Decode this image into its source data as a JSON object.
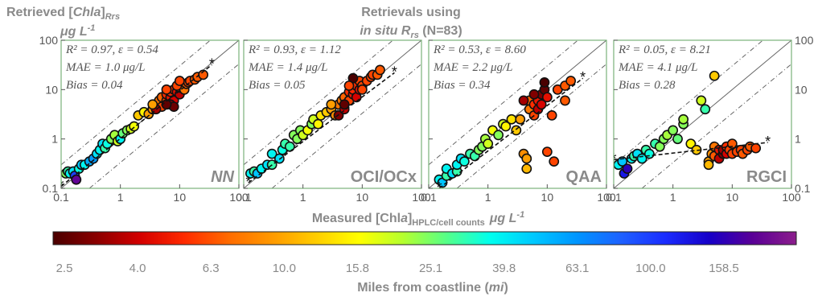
{
  "figure": {
    "title_line1": "Retrievals using",
    "title_line2": "in situ R",
    "title_line2_sub": "rs",
    "title_line2_tail": " (N=83)",
    "ylabel_line1": "Retrieved [",
    "ylabel_chl": "Chl",
    "ylabel_a": "a",
    "ylabel_close": "]",
    "ylabel_sub": "Rrs",
    "ylabel_line2": "μg L",
    "ylabel_line2_sup": "-1",
    "xlabel": "Measured [Chl",
    "xlabel_a": "a",
    "xlabel_close": "]",
    "xlabel_sub": "HPLC/cell counts",
    "xlabel_unit": "μg L",
    "xlabel_unit_sup": "-1",
    "colorbar_title": "Miles from coastline (",
    "colorbar_title_unit": "mi",
    "colorbar_title_close": ")",
    "colorbar_ticks": [
      "2.5",
      "4.0",
      "6.3",
      "10.0",
      "15.8",
      "25.1",
      "39.8",
      "63.1",
      "100.0",
      "158.5"
    ],
    "colorbar_colors": [
      "#4a0000",
      "#8b0000",
      "#d40000",
      "#ff2a00",
      "#ff6a00",
      "#ff9900",
      "#ffcc00",
      "#ffff00",
      "#b5ff2e",
      "#55ff88",
      "#00ffee",
      "#00c8ff",
      "#0094ff",
      "#1e60ff",
      "#1a2cff",
      "#1600c8",
      "#5a0096",
      "#8c1e8c"
    ]
  },
  "chart_data": [
    {
      "type": "scatter",
      "method": "NN",
      "xscale": "log",
      "yscale": "log",
      "xlim": [
        0.1,
        100
      ],
      "ylim": [
        0.1,
        100
      ],
      "xticks": [
        "0.1",
        "1",
        "10",
        "100"
      ],
      "yticks": [
        "0.1",
        "1",
        "10",
        "100"
      ],
      "stats": [
        "R² = 0.97, ε = 0.54",
        "MAE = 1.0 μg/L",
        "Bias = 0.04"
      ],
      "regression": [
        [
          0.1,
          0.11
        ],
        [
          35,
          32
        ]
      ],
      "points": [
        [
          0.12,
          0.2,
          0.5
        ],
        [
          0.13,
          0.22,
          0.55
        ],
        [
          0.14,
          0.2,
          0.6
        ],
        [
          0.16,
          0.22,
          0.62
        ],
        [
          0.17,
          0.18,
          0.8
        ],
        [
          0.18,
          0.15,
          0.95
        ],
        [
          0.2,
          0.25,
          0.58
        ],
        [
          0.22,
          0.3,
          0.65
        ],
        [
          0.25,
          0.3,
          0.6
        ],
        [
          0.3,
          0.35,
          0.68
        ],
        [
          0.35,
          0.4,
          0.7
        ],
        [
          0.4,
          0.5,
          0.62
        ],
        [
          0.45,
          0.6,
          0.6
        ],
        [
          0.5,
          0.8,
          0.62
        ],
        [
          0.55,
          0.65,
          0.55
        ],
        [
          0.6,
          0.8,
          0.58
        ],
        [
          0.7,
          1.0,
          0.5
        ],
        [
          0.8,
          1.2,
          0.48
        ],
        [
          0.9,
          0.9,
          0.45
        ],
        [
          1.0,
          1.0,
          0.6
        ],
        [
          1.1,
          1.3,
          0.52
        ],
        [
          1.3,
          1.5,
          0.5
        ],
        [
          1.5,
          1.6,
          0.45
        ],
        [
          1.7,
          1.8,
          0.42
        ],
        [
          2.0,
          3.0,
          0.35
        ],
        [
          2.5,
          3.5,
          0.4
        ],
        [
          3.0,
          3.2,
          0.3
        ],
        [
          3.5,
          4.0,
          0.28
        ],
        [
          4,
          5,
          0.25
        ],
        [
          4.5,
          6,
          0.25
        ],
        [
          5,
          4.5,
          0.2
        ],
        [
          5,
          7,
          0.23
        ],
        [
          6,
          6,
          0.2
        ],
        [
          6,
          8,
          0.18
        ],
        [
          7,
          7,
          0.15
        ],
        [
          7,
          9,
          0.17
        ],
        [
          8,
          6,
          0.12
        ],
        [
          8,
          10,
          0.18
        ],
        [
          9,
          9,
          0.14
        ],
        [
          10,
          8,
          0.1
        ],
        [
          10,
          11,
          0.2
        ],
        [
          11,
          12,
          0.2
        ],
        [
          12,
          10,
          0.25
        ],
        [
          13,
          13,
          0.22
        ],
        [
          14,
          14,
          0.2
        ],
        [
          15,
          15,
          0.2
        ],
        [
          18,
          16,
          0.22
        ],
        [
          20,
          18,
          0.22
        ],
        [
          25,
          20,
          0.22
        ],
        [
          7,
          5,
          0.05
        ],
        [
          8,
          4.5,
          0.03
        ],
        [
          6,
          5,
          0.02
        ],
        [
          4,
          4,
          0.08
        ],
        [
          3.5,
          5,
          0.3
        ],
        [
          9,
          12,
          0.2
        ],
        [
          10,
          15,
          0.2
        ],
        [
          6,
          10,
          0.2
        ]
      ]
    },
    {
      "type": "scatter",
      "method": "OCI/OCx",
      "xscale": "log",
      "yscale": "log",
      "xlim": [
        0.1,
        100
      ],
      "ylim": [
        0.1,
        100
      ],
      "xticks": [
        "0.1",
        "1",
        "10",
        "100"
      ],
      "yticks": [],
      "stats": [
        "R² = 0.93, ε = 1.12",
        "MAE = 1.4 μg/L",
        "Bias = 0.05"
      ],
      "regression": [
        [
          0.12,
          0.13
        ],
        [
          35,
          22
        ]
      ],
      "points": [
        [
          0.13,
          0.2,
          0.6
        ],
        [
          0.15,
          0.22,
          0.55
        ],
        [
          0.17,
          0.2,
          0.65
        ],
        [
          0.2,
          0.25,
          0.6
        ],
        [
          0.25,
          0.3,
          0.62
        ],
        [
          0.3,
          0.3,
          0.55
        ],
        [
          0.3,
          0.5,
          0.6
        ],
        [
          0.4,
          0.4,
          0.62
        ],
        [
          0.45,
          0.6,
          0.58
        ],
        [
          0.5,
          0.8,
          0.55
        ],
        [
          0.6,
          0.7,
          0.55
        ],
        [
          0.7,
          1.2,
          0.5
        ],
        [
          0.8,
          1.0,
          0.5
        ],
        [
          0.9,
          1.5,
          0.5
        ],
        [
          1.0,
          1.2,
          0.45
        ],
        [
          1.2,
          1.5,
          0.42
        ],
        [
          1.4,
          2.0,
          0.5
        ],
        [
          1.5,
          2.5,
          0.45
        ],
        [
          1.8,
          2.0,
          0.4
        ],
        [
          2.0,
          3.0,
          0.38
        ],
        [
          2.5,
          3.5,
          0.35
        ],
        [
          3,
          4,
          0.3
        ],
        [
          3.5,
          3,
          0.28
        ],
        [
          4,
          5,
          0.25
        ],
        [
          4,
          3,
          0.05
        ],
        [
          4.5,
          6,
          0.25
        ],
        [
          5,
          4,
          0.1
        ],
        [
          5,
          7,
          0.23
        ],
        [
          6,
          6,
          0.2
        ],
        [
          6,
          9,
          0.18
        ],
        [
          7,
          8,
          0.15
        ],
        [
          7,
          10,
          0.17
        ],
        [
          8,
          7,
          0.12
        ],
        [
          8,
          12,
          0.18
        ],
        [
          9,
          10,
          0.14
        ],
        [
          9,
          15,
          0.2
        ],
        [
          10,
          12,
          0.2
        ],
        [
          12,
          15,
          0.2
        ],
        [
          14,
          18,
          0.2
        ],
        [
          15,
          20,
          0.2
        ],
        [
          18,
          20,
          0.22
        ],
        [
          20,
          25,
          0.22
        ],
        [
          7,
          17,
          0.0
        ],
        [
          5,
          5,
          0.02
        ],
        [
          10,
          10,
          0.2
        ],
        [
          3,
          5,
          0.3
        ],
        [
          6,
          12,
          0.2
        ]
      ]
    },
    {
      "type": "scatter",
      "method": "QAA",
      "xscale": "log",
      "yscale": "log",
      "xlim": [
        0.1,
        100
      ],
      "ylim": [
        0.1,
        100
      ],
      "xticks": [
        "0.1",
        "1",
        "10",
        "100"
      ],
      "yticks": [],
      "stats": [
        "R² = 0.53, ε = 8.60",
        "MAE = 2.2 μg/L",
        "Bias = 0.34"
      ],
      "regression": [
        [
          0.15,
          0.1
        ],
        [
          40,
          17
        ]
      ],
      "points": [
        [
          0.15,
          0.15,
          0.6
        ],
        [
          0.17,
          0.13,
          0.65
        ],
        [
          0.2,
          0.18,
          0.55
        ],
        [
          0.2,
          0.25,
          0.6
        ],
        [
          0.25,
          0.2,
          0.62
        ],
        [
          0.3,
          0.22,
          0.55
        ],
        [
          0.3,
          0.3,
          0.6
        ],
        [
          0.35,
          0.4,
          0.62
        ],
        [
          0.4,
          0.35,
          0.58
        ],
        [
          0.5,
          0.5,
          0.55
        ],
        [
          0.6,
          0.45,
          0.55
        ],
        [
          0.7,
          0.6,
          0.5
        ],
        [
          0.8,
          0.7,
          0.5
        ],
        [
          0.9,
          1.0,
          0.48
        ],
        [
          1.0,
          0.8,
          0.45
        ],
        [
          1.2,
          1.5,
          0.42
        ],
        [
          1.5,
          1.2,
          0.5
        ],
        [
          1.8,
          2.0,
          0.45
        ],
        [
          2.0,
          1.8,
          0.4
        ],
        [
          2.5,
          2.5,
          0.38
        ],
        [
          3,
          1.5,
          0.35
        ],
        [
          3.5,
          2.5,
          0.3
        ],
        [
          4,
          0.5,
          0.28
        ],
        [
          4.5,
          0.4,
          0.3
        ],
        [
          4.5,
          0.25,
          0.33
        ],
        [
          5,
          4,
          0.25
        ],
        [
          5,
          6,
          0.23
        ],
        [
          6,
          3,
          0.2
        ],
        [
          6,
          5,
          0.18
        ],
        [
          7,
          6,
          0.15
        ],
        [
          7,
          4,
          0.1
        ],
        [
          8,
          5,
          0.12
        ],
        [
          8,
          8,
          0.05
        ],
        [
          9,
          10,
          0.02
        ],
        [
          10,
          7,
          0.14
        ],
        [
          10,
          0.55,
          0.2
        ],
        [
          12,
          3,
          0.2
        ],
        [
          13,
          0.35,
          0.2
        ],
        [
          15,
          10,
          0.2
        ],
        [
          20,
          6,
          0.22
        ],
        [
          20,
          12,
          0.22
        ],
        [
          25,
          15,
          0.22
        ],
        [
          9,
          14,
          0.0
        ],
        [
          6,
          8,
          0.05
        ],
        [
          4,
          6,
          0.08
        ]
      ]
    },
    {
      "type": "scatter",
      "method": "RGCI",
      "xscale": "log",
      "yscale": "log",
      "xlim": [
        0.1,
        100
      ],
      "ylim": [
        0.1,
        100
      ],
      "xticks": [
        "0.1",
        "1",
        "10",
        "100"
      ],
      "yticks": [
        "0.1",
        "1",
        "10",
        "100"
      ],
      "stats": [
        "R² = 0.05, ε = 8.21",
        "MAE = 4.1 μg/L",
        "Bias = 0.28"
      ],
      "regression": [
        [
          0.1,
          0.38
        ],
        [
          40,
          0.85
        ]
      ],
      "points": [
        [
          0.12,
          0.3,
          0.6
        ],
        [
          0.14,
          0.35,
          0.65
        ],
        [
          0.15,
          0.2,
          0.85
        ],
        [
          0.17,
          0.25,
          0.9
        ],
        [
          0.2,
          0.4,
          0.6
        ],
        [
          0.22,
          0.45,
          0.55
        ],
        [
          0.25,
          0.5,
          0.62
        ],
        [
          0.3,
          0.4,
          0.6
        ],
        [
          0.35,
          0.6,
          0.55
        ],
        [
          0.4,
          0.5,
          0.58
        ],
        [
          0.5,
          0.8,
          0.55
        ],
        [
          0.6,
          0.7,
          0.5
        ],
        [
          0.7,
          1.0,
          0.5
        ],
        [
          0.8,
          1.2,
          0.48
        ],
        [
          1.0,
          1.5,
          0.5
        ],
        [
          1.2,
          1.0,
          0.52
        ],
        [
          1.5,
          2.0,
          0.5
        ],
        [
          1.5,
          2.5,
          0.48
        ],
        [
          2.0,
          0.8,
          0.4
        ],
        [
          2.5,
          0.6,
          0.35
        ],
        [
          3,
          6,
          0.45
        ],
        [
          3.5,
          4,
          0.55
        ],
        [
          4,
          0.35,
          0.3
        ],
        [
          4,
          0.3,
          0.33
        ],
        [
          4.5,
          0.5,
          0.28
        ],
        [
          5,
          0.45,
          0.22
        ],
        [
          5,
          0.7,
          0.25
        ],
        [
          6,
          0.6,
          0.15
        ],
        [
          6,
          0.4,
          0.1
        ],
        [
          7,
          0.5,
          0.05
        ],
        [
          7,
          0.6,
          0.08
        ],
        [
          8,
          0.5,
          0.12
        ],
        [
          8,
          0.7,
          0.18
        ],
        [
          9,
          0.6,
          0.2
        ],
        [
          10,
          0.5,
          0.2
        ],
        [
          10,
          0.8,
          0.22
        ],
        [
          12,
          0.55,
          0.2
        ],
        [
          14,
          0.6,
          0.2
        ],
        [
          15,
          0.5,
          0.22
        ],
        [
          18,
          0.6,
          0.2
        ],
        [
          20,
          0.7,
          0.22
        ],
        [
          25,
          0.65,
          0.2
        ],
        [
          5,
          19,
          0.35
        ]
      ]
    }
  ]
}
